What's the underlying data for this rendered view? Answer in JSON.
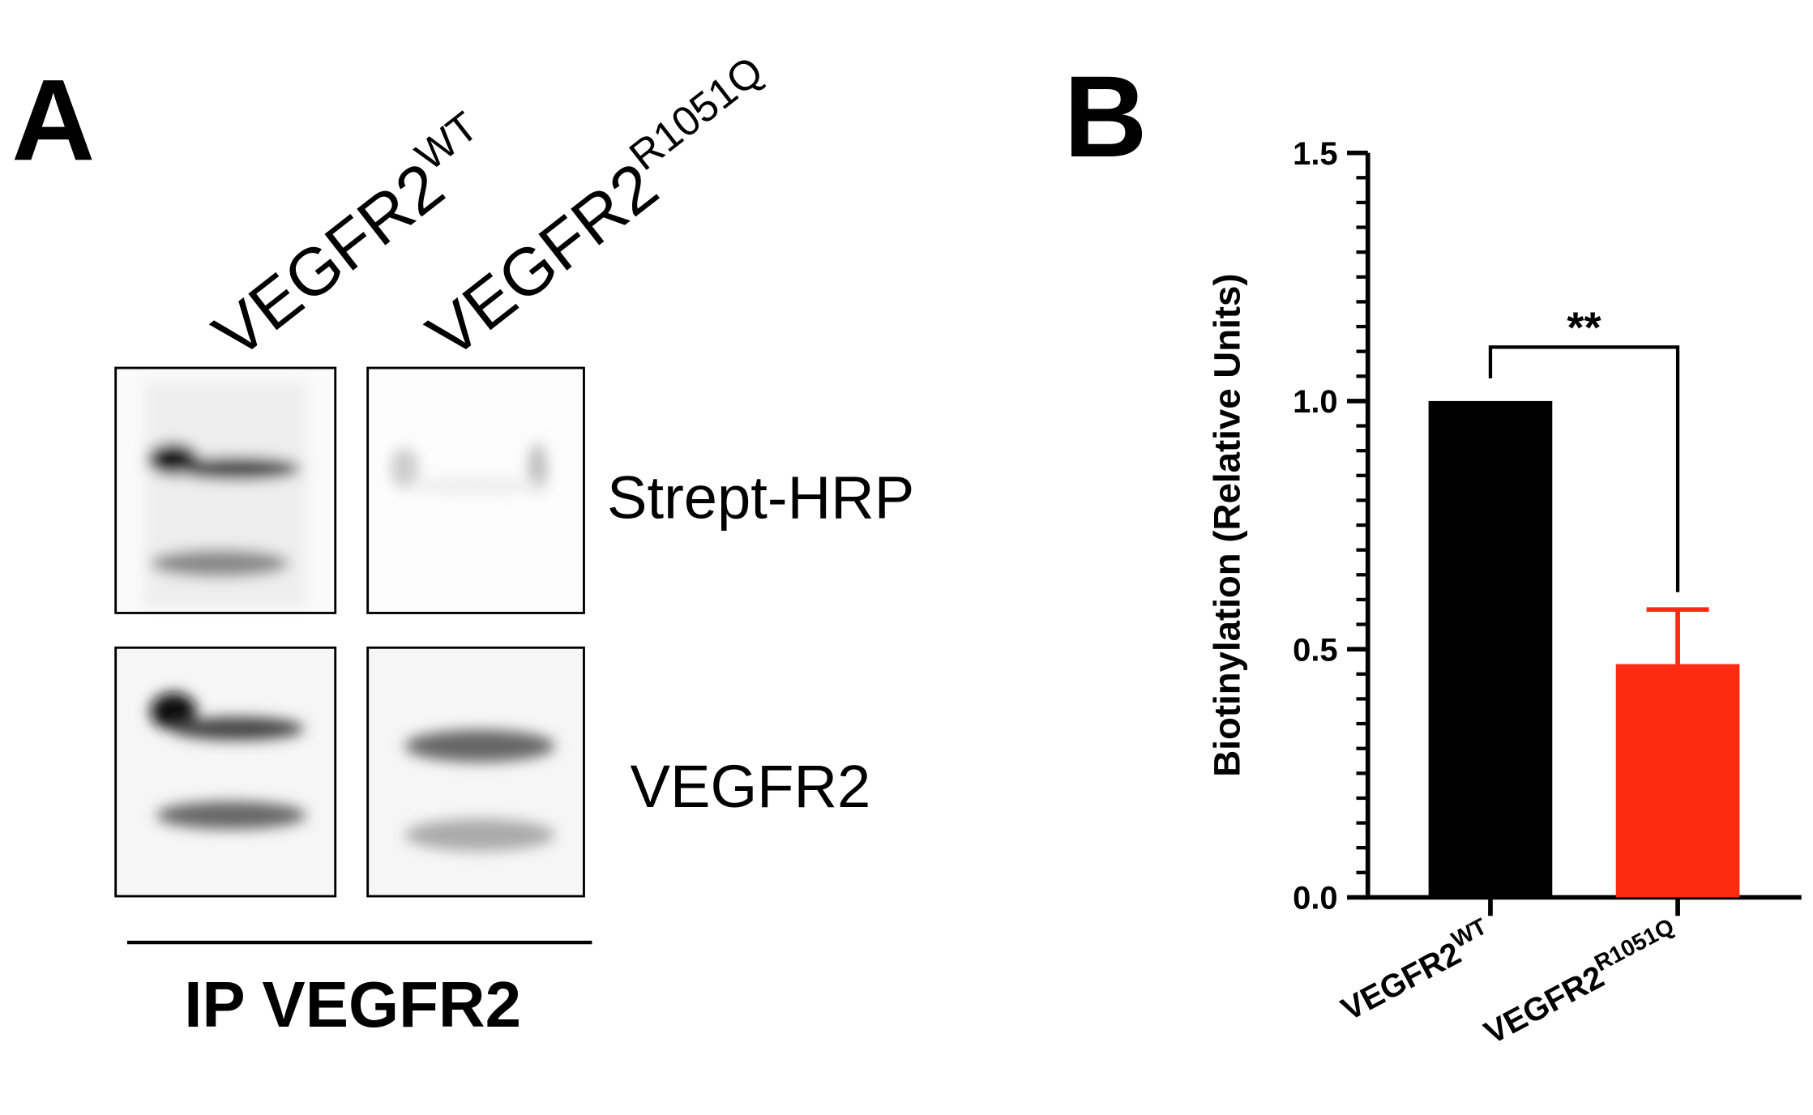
{
  "panel_a": {
    "label": "A",
    "lanes": [
      {
        "name": "VEGFR2",
        "superscript": "WT"
      },
      {
        "name": "VEGFR2",
        "superscript": "R1051Q"
      }
    ],
    "blots": [
      "Strept-HRP",
      "VEGFR2"
    ],
    "ip_label": "IP VEGFR2"
  },
  "chart_data": {
    "type": "bar",
    "panel_label": "B",
    "ylabel": "Biotinylation (Relative Units)",
    "categories": [
      "VEGFR2",
      "VEGFR2"
    ],
    "category_superscripts": [
      "WT",
      "R1051Q"
    ],
    "values": [
      1.0,
      0.47
    ],
    "errors": [
      null,
      0.11
    ],
    "colors": [
      "#000000",
      "#ff2a12"
    ],
    "ylim": [
      0,
      1.5
    ],
    "yticks": [
      {
        "value": 0,
        "label": "0.0"
      },
      0.5,
      {
        "value": 1,
        "label": "1.0"
      },
      1.5
    ],
    "minor_yticks": [
      0.05,
      0.1,
      0.15,
      0.2,
      0.25,
      0.3,
      0.35,
      0.4,
      0.45,
      0.55,
      0.6,
      0.65,
      0.7,
      0.75,
      0.8,
      0.85,
      0.9,
      0.95,
      1.05,
      1.1,
      1.15,
      1.2,
      1.25,
      1.3,
      1.35,
      1.4,
      1.45
    ],
    "annotation": "**"
  }
}
